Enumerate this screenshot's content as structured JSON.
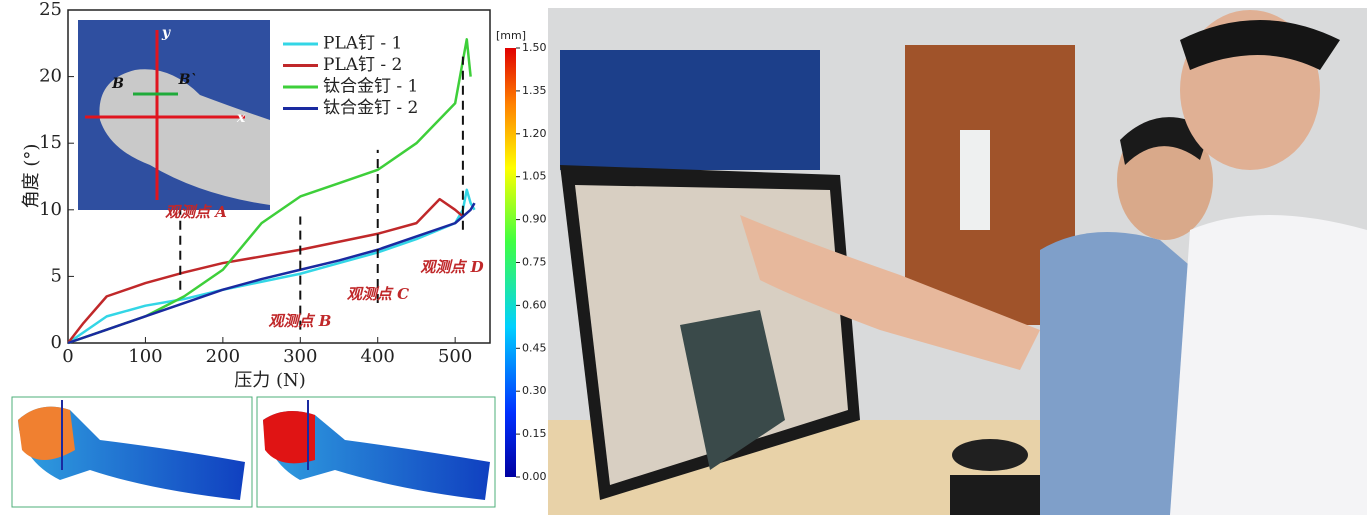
{
  "chart_data": {
    "type": "line",
    "x_label": "压力 (N)",
    "y_label": "角度 (°)",
    "xlim": [
      0,
      545
    ],
    "xticks": [
      0,
      100,
      200,
      300,
      400,
      500
    ],
    "ylim": [
      0,
      25
    ],
    "yticks": [
      0,
      5,
      10,
      15,
      20,
      25
    ],
    "series": [
      {
        "name": "PLA钉 - 1",
        "color": "#33d6e6",
        "x": [
          0,
          20,
          50,
          100,
          150,
          200,
          250,
          300,
          350,
          400,
          450,
          500,
          510,
          515,
          520,
          525
        ],
        "values": [
          0,
          0.8,
          2,
          2.8,
          3.3,
          4,
          4.6,
          5.2,
          6,
          6.8,
          7.8,
          9,
          10,
          11.5,
          10.5,
          10
        ]
      },
      {
        "name": "PLA钉 - 2",
        "color": "#c0282a",
        "x": [
          0,
          20,
          50,
          100,
          150,
          200,
          250,
          300,
          350,
          400,
          450,
          480,
          500,
          510
        ],
        "values": [
          0,
          1.5,
          3.5,
          4.5,
          5.3,
          6,
          6.5,
          7,
          7.6,
          8.2,
          9,
          10.8,
          10,
          9.5
        ]
      },
      {
        "name": "钛合金钉 - 1",
        "color": "#3ecf3a",
        "x": [
          0,
          50,
          100,
          150,
          200,
          250,
          300,
          350,
          400,
          450,
          500,
          515,
          520
        ],
        "values": [
          0,
          1,
          2,
          3.5,
          5.5,
          9,
          11,
          12,
          13,
          15,
          18,
          22.8,
          20
        ]
      },
      {
        "name": "钛合金钉 - 2",
        "color": "#1a2aa0",
        "x": [
          0,
          50,
          100,
          150,
          200,
          250,
          300,
          350,
          400,
          450,
          500,
          520,
          525
        ],
        "values": [
          0,
          1,
          2,
          3,
          4,
          4.8,
          5.5,
          6.2,
          7,
          8,
          9,
          10,
          10.5
        ]
      }
    ],
    "annotations": [
      {
        "text": "观测点 A",
        "x": 145,
        "y": [
          4,
          10
        ]
      },
      {
        "text": "观测点 B",
        "x": 300,
        "y": [
          1,
          9.5
        ]
      },
      {
        "text": "观测点 C",
        "x": 400,
        "y": [
          3,
          14.5
        ]
      },
      {
        "text": "观测点 D",
        "x": 510,
        "y": [
          8.5,
          21.5
        ]
      }
    ],
    "inset_labels": [
      "y",
      "x",
      "B",
      "B`"
    ],
    "colorbar": {
      "unit": "[mm]",
      "lim": [
        0,
        1.5
      ],
      "ticks": [
        {
          "value": 0,
          "label": "0.00"
        },
        {
          "value": 0.15,
          "label": "0.15"
        },
        {
          "value": 0.3,
          "label": "0.30"
        },
        {
          "value": 0.45,
          "label": "0.45"
        },
        {
          "value": 0.6,
          "label": "0.60"
        },
        {
          "value": 0.75,
          "label": "0.75"
        },
        {
          "value": 0.9,
          "label": "0.90"
        },
        {
          "value": 1.05,
          "label": "1.05"
        },
        {
          "value": 1.2,
          "label": "1.20"
        },
        {
          "value": 1.35,
          "label": "1.35"
        },
        {
          "value": 1.5,
          "label": "1.50"
        }
      ]
    }
  }
}
